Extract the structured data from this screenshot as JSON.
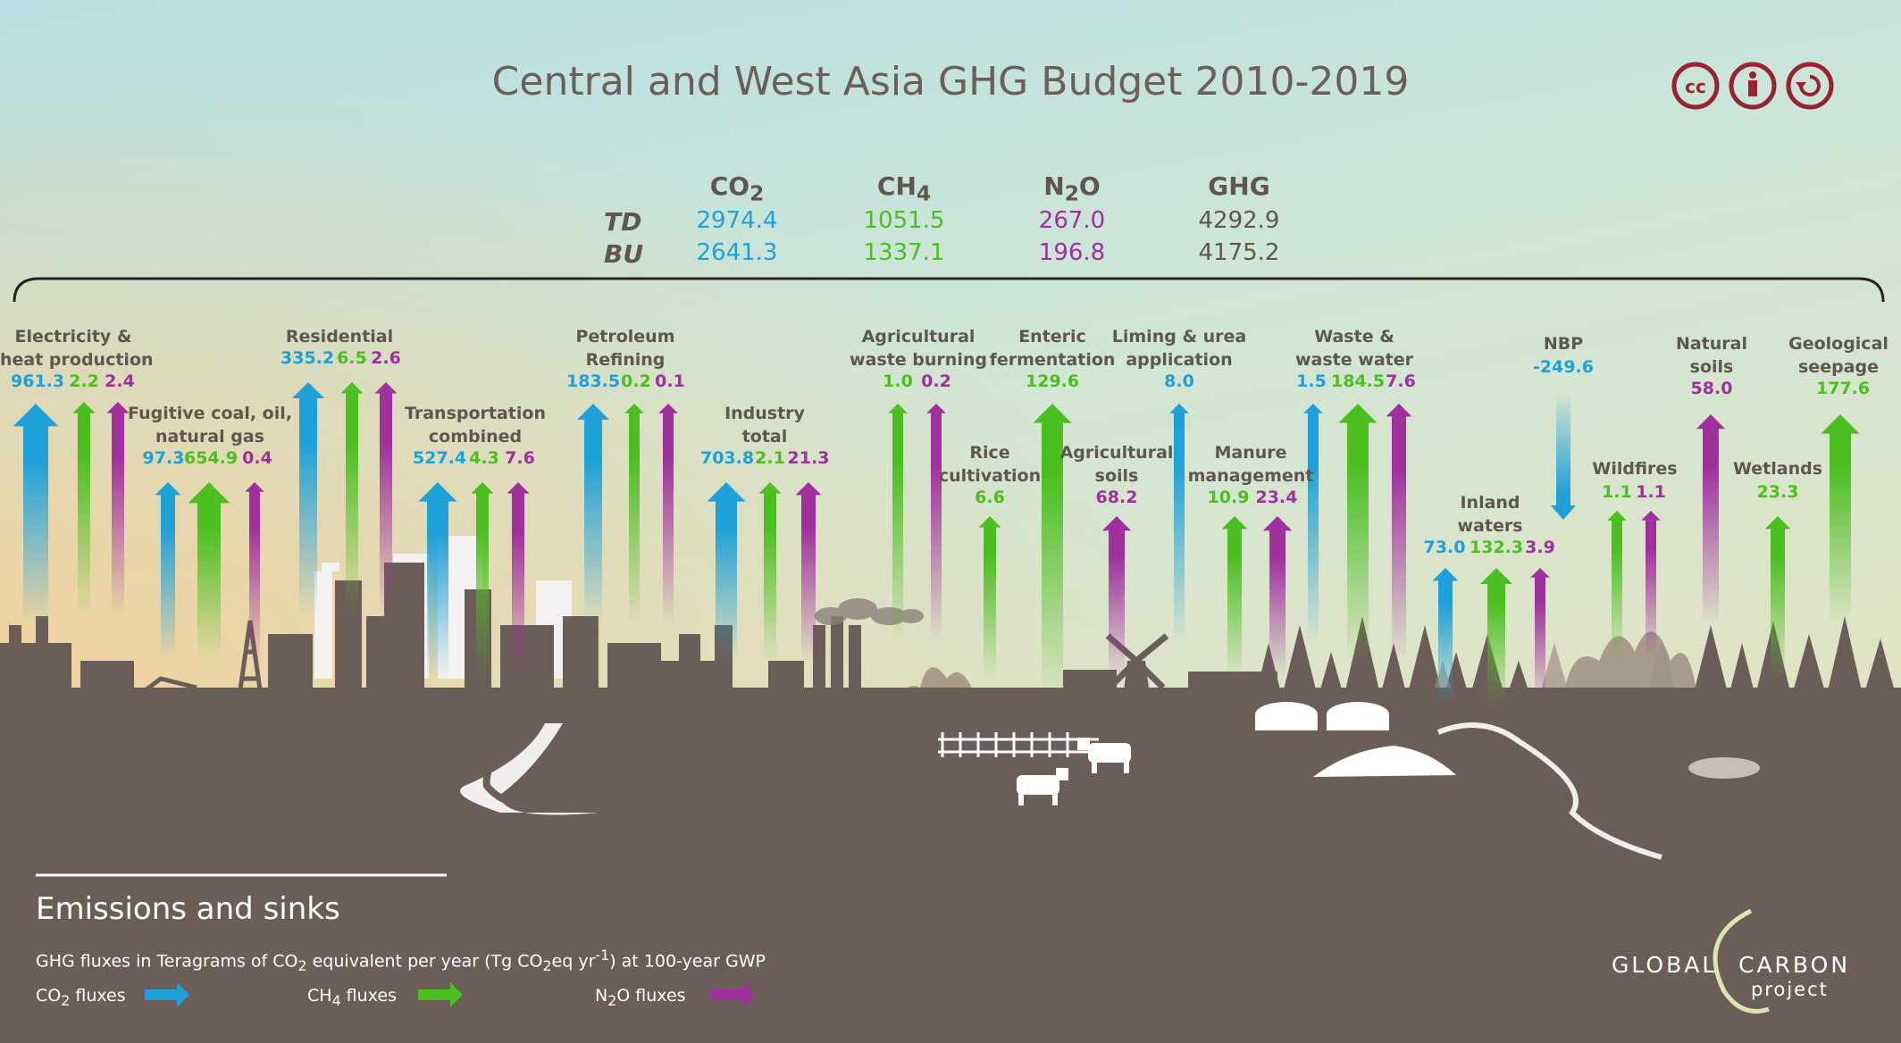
{
  "title": "Central and West Asia GHG Budget 2010-2019",
  "summary": {
    "headers": [
      "CO2",
      "CH4",
      "N2O",
      "GHG"
    ],
    "rows": [
      {
        "label": "TD",
        "values": [
          "2974.4",
          "1051.5",
          "267.0",
          "4292.9"
        ]
      },
      {
        "label": "BU",
        "values": [
          "2641.3",
          "1337.1",
          "196.8",
          "4175.2"
        ]
      }
    ]
  },
  "sources": {
    "electricity": {
      "label1": "Electricity &",
      "label2": "heat production",
      "co2": "961.3",
      "ch4": "2.2",
      "n2o": "2.4"
    },
    "fugitive": {
      "label1": "Fugitive coal, oil,",
      "label2": "natural gas",
      "co2": "97.3",
      "ch4": "654.9",
      "n2o": "0.4"
    },
    "residential": {
      "label1": "Residential",
      "co2": "335.2",
      "ch4": "6.5",
      "n2o": "2.6"
    },
    "transport": {
      "label1": "Transportation",
      "label2": "combined",
      "co2": "527.4",
      "ch4": "4.3",
      "n2o": "7.6"
    },
    "petroleum": {
      "label1": "Petroleum",
      "label2": "Refining",
      "co2": "183.5",
      "ch4": "0.2",
      "n2o": "0.1"
    },
    "industry": {
      "label1": "Industry",
      "label2": "total",
      "co2": "703.8",
      "ch4": "2.1",
      "n2o": "21.3"
    },
    "agwaste": {
      "label1": "Agricultural",
      "label2": "waste  burning",
      "ch4": "1.0",
      "n2o": "0.2"
    },
    "rice": {
      "label1": "Rice",
      "label2": "cultivation",
      "ch4": "6.6"
    },
    "enteric": {
      "label1": "Enteric",
      "label2": "fermentation",
      "ch4": "129.6"
    },
    "agsoils": {
      "label1": "Agricultural",
      "label2": "soils",
      "n2o": "68.2"
    },
    "liming": {
      "label1": "Liming & urea",
      "label2": "application",
      "co2": "8.0"
    },
    "manure": {
      "label1": "Manure",
      "label2": "management",
      "ch4": "10.9",
      "n2o": "23.4"
    },
    "waste": {
      "label1": "Waste &",
      "label2": "waste water",
      "co2": "1.5",
      "ch4": "184.5",
      "n2o": "7.6"
    },
    "inland": {
      "label1": "Inland",
      "label2": "waters",
      "co2": "73.0",
      "ch4": "132.3",
      "n2o": "3.9"
    },
    "nbp": {
      "label1": "NBP",
      "co2": "-249.6"
    },
    "wildfires": {
      "label1": "Wildfires",
      "ch4": "1.1",
      "n2o": "1.1"
    },
    "natsoils": {
      "label1": "Natural",
      "label2": "soils",
      "n2o": "58.0"
    },
    "wetlands": {
      "label1": "Wetlands",
      "ch4": "23.3"
    },
    "geo": {
      "label1": "Geological",
      "label2": "seepage",
      "ch4": "177.6"
    }
  },
  "legend": {
    "title": "Emissions and sinks",
    "subtitle": "GHG fluxes in Teragrams of CO2 equivalent per year (Tg CO2eq yr-1) at 100-year GWP",
    "co2": "CO2 fluxes",
    "ch4": "CH4 fluxes",
    "n2o": "N2O fluxes"
  },
  "logo": {
    "left": "GLOBAL",
    "right": "CARBON",
    "sub": "project"
  },
  "colors": {
    "co2": "#1ea0d8",
    "ch4": "#4cbf20",
    "n2o": "#a0309e",
    "land": "#6b5e58",
    "license": "#9b2230"
  },
  "icons": [
    "cc-icon",
    "attribution-icon",
    "share-alike-icon"
  ]
}
